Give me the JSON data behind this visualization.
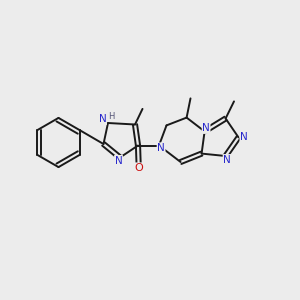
{
  "bg_color": "#ececec",
  "bond_color": "#1a1a1a",
  "N_color": "#2626cc",
  "O_color": "#cc1111",
  "H_color": "#555577",
  "lw": 1.4,
  "fs": 7.5,
  "xlim": [
    0,
    10
  ],
  "ylim": [
    0,
    10
  ]
}
